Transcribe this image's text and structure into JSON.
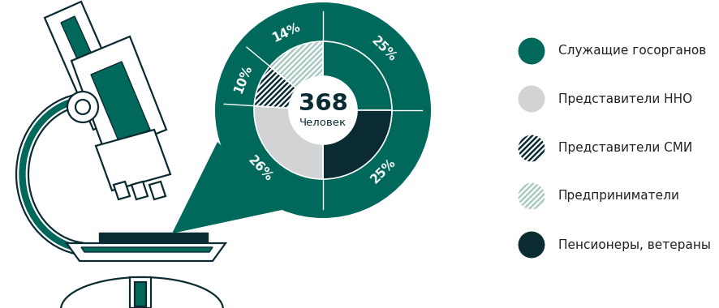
{
  "chart_data": {
    "type": "donut",
    "total": 368,
    "total_label": "Человек",
    "categories": [
      "Служащие госорганов",
      "Пенсионеры, ветераны",
      "Представители ННО",
      "Представители СМИ",
      "Предприниматели"
    ],
    "values": [
      25,
      25,
      26,
      10,
      14
    ],
    "value_labels": [
      "25%",
      "25%",
      "26%",
      "10%",
      "14%"
    ],
    "colors": [
      "#00695c",
      "#0b2b33",
      "#d1d3d4",
      "#0b2b33",
      "#a9c9c3"
    ],
    "data_labels": true,
    "legend": "right"
  }
}
